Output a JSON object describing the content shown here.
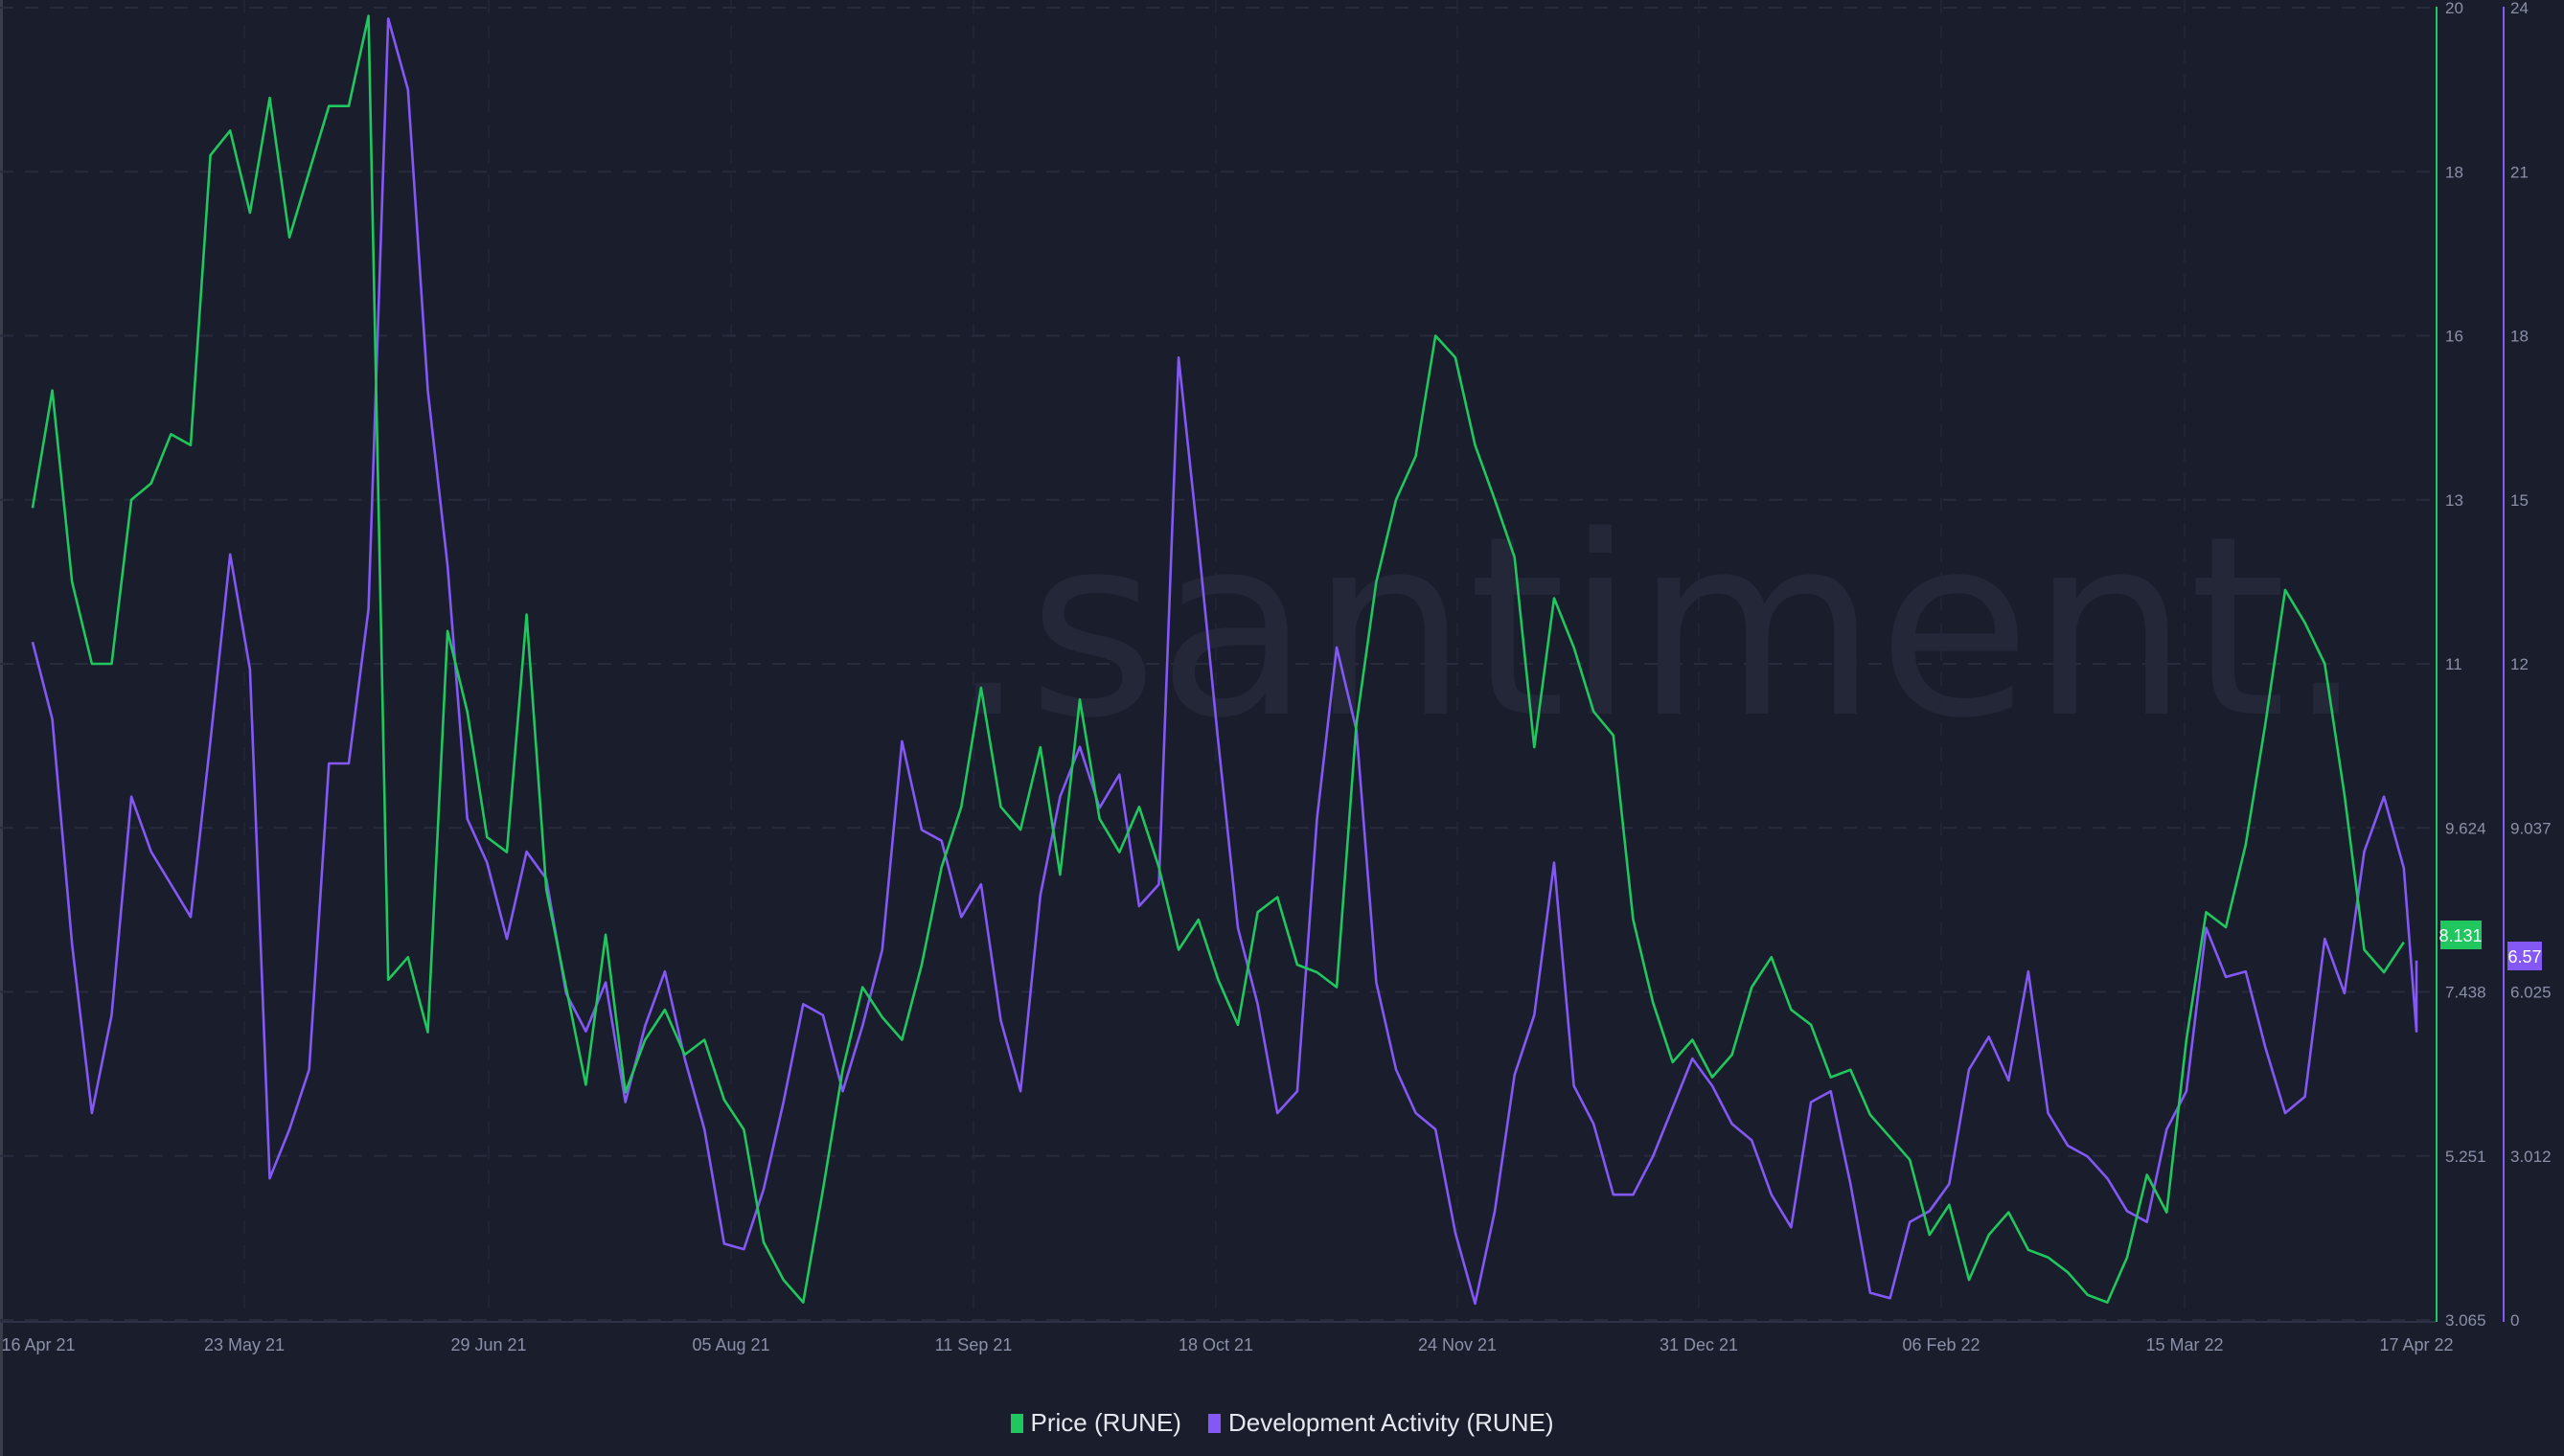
{
  "chart_data": {
    "type": "line",
    "title": "",
    "watermark": ".santiment.",
    "x_ticks": [
      "16 Apr 21",
      "23 May 21",
      "29 Jun 21",
      "05 Aug 21",
      "11 Sep 21",
      "18 Oct 21",
      "24 Nov 21",
      "31 Dec 21",
      "06 Feb 22",
      "15 Mar 22",
      "17 Apr 22"
    ],
    "x_range": [
      "16 Apr 21",
      "17 Apr 22"
    ],
    "grid": true,
    "legend_position": "bottom",
    "y_axes": [
      {
        "name": "Price (RUNE)",
        "side": "right",
        "color": "#1fc75e",
        "ticks": [
          20,
          18,
          16,
          13,
          11,
          9.624,
          7.438,
          5.251,
          3.065
        ],
        "current_value": "8.131"
      },
      {
        "name": "Development Activity (RUNE)",
        "side": "right",
        "color": "#8358f5",
        "ticks": [
          24,
          21,
          18,
          15,
          12,
          9.037,
          6.025,
          3.012,
          0
        ],
        "current_value": "6.57"
      }
    ],
    "series": [
      {
        "name": "Price (RUNE)",
        "color": "#1fc75e",
        "axis": 0,
        "x_days": [
          0,
          3,
          6,
          9,
          12,
          15,
          18,
          21,
          24,
          27,
          30,
          33,
          36,
          39,
          42,
          45,
          48,
          51,
          54,
          57,
          60,
          63,
          66,
          69,
          72,
          75,
          78,
          81,
          84,
          87,
          90,
          93,
          96,
          99,
          102,
          105,
          108,
          111,
          114,
          117,
          120,
          123,
          126,
          129,
          132,
          135,
          138,
          141,
          144,
          147,
          150,
          153,
          156,
          159,
          162,
          165,
          168,
          171,
          174,
          177,
          180,
          183,
          186,
          189,
          192,
          195,
          198,
          201,
          204,
          207,
          210,
          213,
          216,
          219,
          222,
          225,
          228,
          231,
          234,
          237,
          240,
          243,
          246,
          249,
          252,
          255,
          258,
          261,
          264,
          267,
          270,
          273,
          276,
          279,
          282,
          285,
          288,
          291,
          294,
          297,
          300,
          303,
          306,
          309,
          312,
          315,
          318,
          321,
          324,
          327,
          330,
          333,
          336,
          339,
          342,
          345,
          348,
          351,
          354,
          357,
          360,
          363,
          366
        ],
        "values": [
          12.9,
          15.0,
          12.0,
          11.0,
          11.0,
          13.0,
          13.3,
          14.2,
          14.0,
          18.2,
          18.5,
          17.5,
          18.9,
          17.2,
          18.0,
          18.8,
          18.8,
          19.9,
          7.6,
          7.9,
          6.9,
          11.4,
          10.6,
          9.5,
          9.3,
          11.6,
          8.8,
          7.5,
          6.2,
          8.2,
          6.1,
          6.8,
          7.2,
          6.6,
          6.8,
          6.0,
          5.6,
          4.1,
          3.6,
          3.3,
          4.8,
          6.4,
          7.5,
          7.1,
          6.8,
          7.8,
          9.1,
          9.8,
          10.8,
          9.8,
          9.6,
          10.3,
          9.0,
          10.7,
          9.7,
          9.3,
          9.8,
          9.1,
          8.0,
          8.4,
          7.6,
          7.0,
          8.5,
          8.7,
          7.8,
          7.7,
          7.5,
          10.5,
          12.0,
          13.0,
          13.8,
          16.0,
          15.6,
          14.0,
          13.0,
          12.3,
          10.3,
          11.8,
          11.2,
          10.6,
          10.4,
          8.4,
          7.3,
          6.5,
          6.8,
          6.3,
          6.6,
          7.5,
          7.9,
          7.2,
          7.0,
          6.3,
          6.4,
          5.8,
          5.5,
          5.2,
          4.2,
          4.6,
          3.6,
          4.2,
          4.5,
          4.0,
          3.9,
          3.7,
          3.4,
          3.3,
          3.9,
          5.0,
          4.5,
          6.8,
          8.5,
          8.3,
          9.4,
          10.5,
          11.9,
          11.5,
          11.0,
          9.9,
          8.0,
          7.7,
          8.1
        ]
      },
      {
        "name": "Development Activity (RUNE)",
        "color": "#8358f5",
        "axis": 1,
        "x_days": [
          0,
          3,
          6,
          9,
          12,
          15,
          18,
          21,
          24,
          27,
          30,
          33,
          36,
          39,
          42,
          45,
          48,
          51,
          54,
          57,
          60,
          63,
          66,
          69,
          72,
          75,
          78,
          81,
          84,
          87,
          90,
          93,
          96,
          99,
          102,
          105,
          108,
          111,
          114,
          117,
          120,
          123,
          126,
          129,
          132,
          135,
          138,
          141,
          144,
          147,
          150,
          153,
          156,
          159,
          162,
          165,
          168,
          171,
          174,
          177,
          180,
          183,
          186,
          189,
          192,
          195,
          198,
          201,
          204,
          207,
          210,
          213,
          216,
          219,
          222,
          225,
          228,
          231,
          234,
          237,
          240,
          243,
          246,
          249,
          252,
          255,
          258,
          261,
          264,
          267,
          270,
          273,
          276,
          279,
          282,
          285,
          288,
          291,
          294,
          297,
          300,
          303,
          306,
          309,
          312,
          315,
          318,
          321,
          324,
          327,
          330,
          333,
          336,
          339,
          342,
          345,
          348,
          351,
          354,
          357,
          360,
          363,
          366
        ],
        "values": [
          12.4,
          11.0,
          6.9,
          3.8,
          5.6,
          9.6,
          8.6,
          8.0,
          7.4,
          10.6,
          14.0,
          11.9,
          2.6,
          3.5,
          4.6,
          10.2,
          10.2,
          13.0,
          23.8,
          22.5,
          17.0,
          13.8,
          9.2,
          8.4,
          7.0,
          8.6,
          8.1,
          6.0,
          5.3,
          6.2,
          4.0,
          5.4,
          6.4,
          4.8,
          3.5,
          1.4,
          1.3,
          2.4,
          4.0,
          5.8,
          5.6,
          4.2,
          5.4,
          6.8,
          10.6,
          9.0,
          8.8,
          7.4,
          8.0,
          5.5,
          4.2,
          7.8,
          9.6,
          10.5,
          9.4,
          10.0,
          7.6,
          8.0,
          17.6,
          14.2,
          10.6,
          7.2,
          5.8,
          3.8,
          4.2,
          9.2,
          12.3,
          10.8,
          6.2,
          4.6,
          3.8,
          3.5,
          1.6,
          0.3,
          2.0,
          4.5,
          5.6,
          8.4,
          4.3,
          3.6,
          2.3,
          2.3,
          3.0,
          3.9,
          4.8,
          4.3,
          3.6,
          3.3,
          2.3,
          1.7,
          4.0,
          4.2,
          2.5,
          0.5,
          0.4,
          1.8,
          2.0,
          2.5,
          4.6,
          5.2,
          4.4,
          6.4,
          3.8,
          3.2,
          3.0,
          2.6,
          2.0,
          1.8,
          3.5,
          4.2,
          7.2,
          6.3,
          6.4,
          5.0,
          3.8,
          4.1,
          7.0,
          6.0,
          8.6,
          9.6,
          8.3,
          5.3,
          6.6
        ]
      }
    ]
  },
  "axes": {
    "price_ticks": [
      "20",
      "18",
      "16",
      "13",
      "11",
      "9.624",
      "7.438",
      "5.251",
      "3.065"
    ],
    "dev_ticks": [
      "24",
      "21",
      "18",
      "15",
      "12",
      "9.037",
      "6.025",
      "3.012",
      "0"
    ],
    "x_ticks": [
      "16 Apr 21",
      "23 May 21",
      "29 Jun 21",
      "05 Aug 21",
      "11 Sep 21",
      "18 Oct 21",
      "24 Nov 21",
      "31 Dec 21",
      "06 Feb 22",
      "15 Mar 22",
      "17 Apr 22"
    ]
  },
  "badges": {
    "price": "8.131",
    "dev": "6.57"
  },
  "legend": {
    "items": [
      {
        "label": "Price (RUNE)",
        "color": "#1fc75e"
      },
      {
        "label": "Development Activity (RUNE)",
        "color": "#8358f5"
      }
    ]
  },
  "watermark": ".santiment."
}
